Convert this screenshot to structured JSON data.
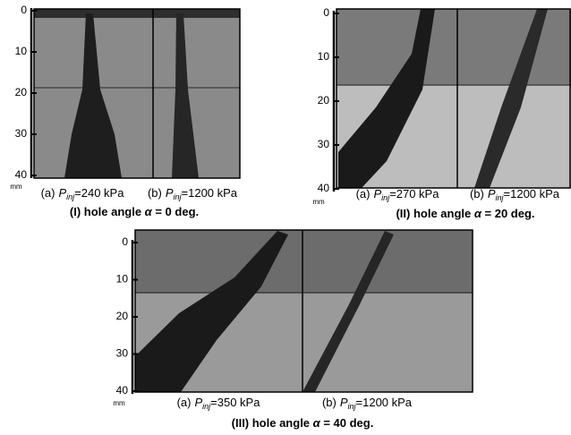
{
  "panels": [
    {
      "scale": {
        "ticks": [
          0,
          10,
          20,
          30,
          40
        ],
        "unit": "mm"
      },
      "subcaptions": [
        {
          "label": "(a)",
          "symbol": "P",
          "subscript": "inj",
          "value": "=240 kPa"
        },
        {
          "label": "(b)",
          "symbol": "P",
          "subscript": "inj",
          "value": "=1200 kPa"
        }
      ],
      "caption": {
        "prefix": "(I) hole angle ",
        "symbol": "α",
        "suffix": " = 0 deg."
      }
    },
    {
      "scale": {
        "ticks": [
          0,
          10,
          20,
          30,
          40
        ],
        "unit": "mm"
      },
      "subcaptions": [
        {
          "label": "(a)",
          "symbol": "P",
          "subscript": "inj",
          "value": "=270 kPa"
        },
        {
          "label": "(b)",
          "symbol": "P",
          "subscript": "inj",
          "value": "=1200 kPa"
        }
      ],
      "caption": {
        "prefix": "(II) hole angle ",
        "symbol": "α",
        "suffix": " = 20 deg."
      }
    },
    {
      "scale": {
        "ticks": [
          0,
          10,
          20,
          30,
          40
        ],
        "unit": "mm"
      },
      "subcaptions": [
        {
          "label": "(a)",
          "symbol": "P",
          "subscript": "inj",
          "value": "=350 kPa"
        },
        {
          "label": "(b)",
          "symbol": "P",
          "subscript": "inj",
          "value": "=1200 kPa"
        }
      ],
      "caption": {
        "prefix": "(III) hole angle ",
        "symbol": "α",
        "suffix": " = 40 deg."
      }
    }
  ]
}
